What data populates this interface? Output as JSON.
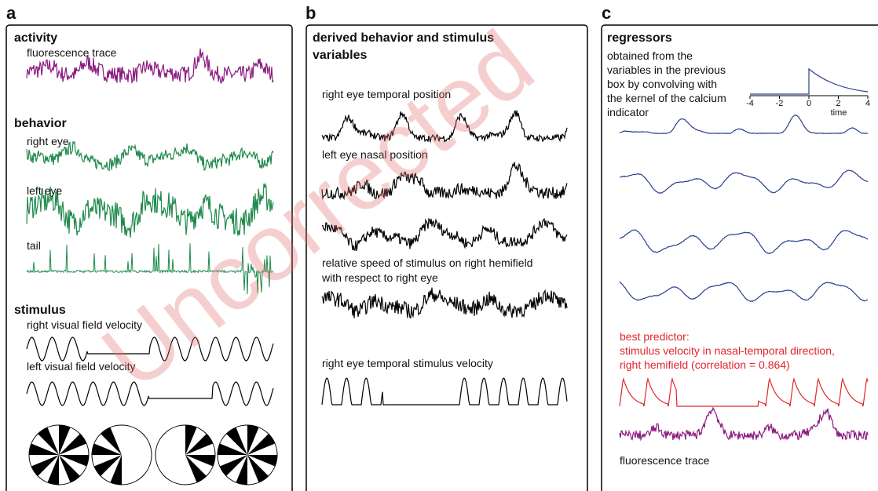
{
  "watermark": "Uncorrected",
  "panel_a": {
    "label": "a",
    "activity": "activity",
    "fluorescence": "fluorescence trace",
    "behavior": "behavior",
    "right_eye": "right eye",
    "left_eye": "left eye",
    "tail": "tail",
    "stimulus": "stimulus",
    "right_vf": "right visual field velocity",
    "left_vf": "left visual field velocity"
  },
  "panel_b": {
    "label": "b",
    "title_1": "derived behavior and stimulus",
    "title_2": "variables",
    "rtp": "right eye temporal position",
    "lnp": "left eye nasal position",
    "rel_1": "relative speed of stimulus on right hemifield",
    "rel_2": "with respect to right eye",
    "rtsv": "right eye temporal stimulus velocity"
  },
  "panel_c": {
    "label": "c",
    "title": "regressors",
    "desc": [
      "obtained from the",
      "variables in the previous",
      "box by convolving with",
      "the kernel of the calcium",
      "indicator"
    ],
    "kernel": {
      "xticks": [
        -4,
        -2,
        0,
        2,
        4
      ],
      "xlabel": "time"
    },
    "best": [
      "best predictor:",
      "stimulus velocity in nasal-temporal direction,",
      "right hemifield (correlation = 0.864)"
    ],
    "fluorescence": "fluorescence trace"
  }
}
